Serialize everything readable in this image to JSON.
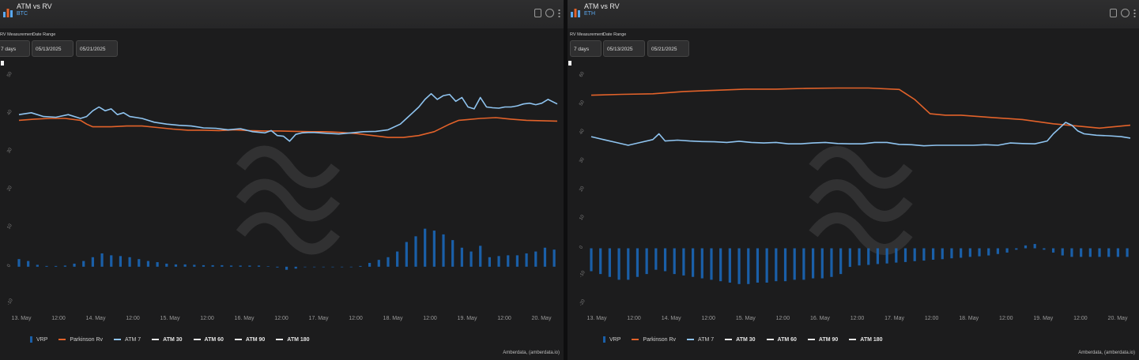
{
  "colors": {
    "vrp": "#1a5fa8",
    "parkinson": "#e2622a",
    "atm7": "#8fc4f0"
  },
  "left": {
    "title": "ATM vs RV",
    "subtitle": "BTC",
    "rv_label": "RV Measurement",
    "range_label": "Date Range",
    "rv_value": "7 days",
    "date_from": "05/13/2025",
    "date_to": "05/21/2025",
    "legend": [
      "VRP",
      "Parkinson Rv",
      "ATM 7",
      "ATM 30",
      "ATM 60",
      "ATM 90",
      "ATM 180"
    ],
    "credit": "Amberdata, (amberdata.io)"
  },
  "right": {
    "title": "ATM vs RV",
    "subtitle": "ETH",
    "rv_label": "RV Measurement",
    "range_label": "Date Range",
    "rv_value": "7 days",
    "date_from": "05/13/2025",
    "date_to": "05/21/2025",
    "legend": [
      "VRP",
      "Parkinson Rv",
      "ATM 7",
      "ATM 30",
      "ATM 60",
      "ATM 90",
      "ATM 180"
    ],
    "credit": "Amberdata, (amberdata.io)"
  },
  "chart_data": [
    {
      "type": "line",
      "x_ticks": [
        "13. May",
        "12:00",
        "14. May",
        "12:00",
        "15. May",
        "12:00",
        "16. May",
        "12:00",
        "17. May",
        "12:00",
        "18. May",
        "12:00",
        "19. May",
        "12:00",
        "20. May"
      ],
      "ylim": [
        -10,
        50
      ],
      "y_ticks": [
        -10,
        0,
        10,
        20,
        30,
        40,
        50
      ],
      "x_range": [
        0,
        175
      ],
      "series": [
        {
          "name": "Parkinson Rv",
          "kind": "line",
          "x": [
            0,
            5,
            10,
            15,
            20,
            22,
            24,
            30,
            35,
            40,
            45,
            50,
            55,
            60,
            65,
            70,
            75,
            80,
            85,
            90,
            95,
            100,
            105,
            110,
            115,
            120,
            125,
            130,
            135,
            140,
            143,
            146,
            150,
            155,
            160,
            165,
            170,
            175
          ],
          "values": [
            38.5,
            38.8,
            39,
            39,
            38.5,
            37.5,
            36.8,
            36.8,
            37,
            37,
            36.6,
            36.2,
            35.9,
            35.9,
            35.8,
            36,
            35.8,
            35.7,
            35.7,
            35.6,
            35.5,
            35.5,
            35.3,
            35,
            34.5,
            34,
            34,
            34.5,
            35.5,
            37.5,
            38.5,
            38.7,
            39,
            39.2,
            38.8,
            38.5,
            38.4,
            38.3
          ]
        },
        {
          "name": "ATM 7",
          "kind": "line",
          "x": [
            0,
            4,
            8,
            12,
            16,
            20,
            22,
            24,
            26,
            28,
            30,
            32,
            34,
            36,
            40,
            44,
            48,
            52,
            56,
            60,
            64,
            68,
            72,
            76,
            80,
            82,
            84,
            86,
            88,
            90,
            92,
            94,
            96,
            100,
            104,
            108,
            112,
            116,
            120,
            124,
            126,
            128,
            130,
            132,
            134,
            136,
            138,
            140,
            142,
            144,
            146,
            148,
            150,
            152,
            154,
            156,
            158,
            160,
            162,
            164,
            166,
            168,
            170,
            172,
            175
          ],
          "values": [
            40,
            40.5,
            39.5,
            39.3,
            40,
            39,
            39.5,
            41,
            42,
            41,
            41.5,
            40,
            40.5,
            39.5,
            39,
            38,
            37.5,
            37.2,
            37,
            36.5,
            36.4,
            36,
            36.3,
            35.5,
            35.2,
            35.8,
            34.5,
            34.3,
            33,
            34.8,
            35.2,
            35.3,
            35.3,
            35.1,
            34.9,
            35.2,
            35.5,
            35.6,
            36,
            37.5,
            39,
            40.5,
            42,
            44,
            45.5,
            44,
            45,
            45.3,
            43.5,
            44.5,
            42,
            41.5,
            44.5,
            42,
            41.8,
            41.7,
            42,
            42,
            42.3,
            42.8,
            43,
            42.6,
            43,
            44,
            42.8
          ]
        },
        {
          "name": "VRP",
          "kind": "bar",
          "x": [
            0,
            3,
            6,
            9,
            12,
            15,
            18,
            21,
            24,
            27,
            30,
            33,
            36,
            39,
            42,
            45,
            48,
            51,
            54,
            57,
            60,
            63,
            66,
            69,
            72,
            75,
            78,
            81,
            84,
            87,
            90,
            93,
            96,
            99,
            102,
            105,
            108,
            111,
            114,
            117,
            120,
            123,
            126,
            129,
            132,
            135,
            138,
            141,
            144,
            147,
            150,
            153,
            156,
            159,
            162,
            165,
            168,
            171,
            174
          ],
          "values": [
            2,
            1.5,
            0.5,
            0.2,
            0.2,
            0.3,
            0.8,
            1.5,
            2.5,
            3.5,
            3,
            2.8,
            2.5,
            2,
            1.5,
            1.2,
            0.8,
            0.6,
            0.6,
            0.5,
            0.4,
            0.4,
            0.4,
            0.3,
            0.3,
            0.3,
            0.3,
            0.1,
            -0.2,
            -0.8,
            -0.5,
            0,
            0,
            0,
            0,
            0,
            0,
            0.2,
            1,
            1.8,
            2.5,
            4,
            6.5,
            8,
            10,
            9.5,
            8.5,
            7,
            5,
            4,
            5.5,
            2.5,
            2.8,
            3,
            3,
            3.5,
            4,
            5,
            4.5
          ]
        }
      ]
    },
    {
      "type": "line",
      "x_ticks": [
        "13. May",
        "12:00",
        "14. May",
        "12:00",
        "15. May",
        "12:00",
        "16. May",
        "12:00",
        "17. May",
        "12:00",
        "18. May",
        "12:00",
        "19. May",
        "12:00",
        "20. May"
      ],
      "ylim": [
        -20,
        60
      ],
      "y_ticks": [
        -20,
        -10,
        0,
        10,
        20,
        30,
        40,
        50,
        60
      ],
      "x_range": [
        0,
        175
      ],
      "series": [
        {
          "name": "Parkinson Rv",
          "kind": "line",
          "x": [
            0,
            10,
            20,
            30,
            40,
            50,
            60,
            70,
            80,
            90,
            100,
            105,
            110,
            115,
            120,
            130,
            140,
            150,
            160,
            165,
            170,
            175
          ],
          "values": [
            53.5,
            53.8,
            54,
            54.8,
            55.2,
            55.6,
            55.6,
            55.9,
            56,
            56,
            55.5,
            52,
            47,
            46.5,
            46.5,
            45.7,
            45,
            43.5,
            42.5,
            42,
            42.5,
            43
          ]
        },
        {
          "name": "ATM 7",
          "kind": "line",
          "x": [
            0,
            4,
            8,
            12,
            16,
            20,
            22,
            24,
            28,
            32,
            36,
            40,
            44,
            48,
            52,
            56,
            60,
            64,
            68,
            72,
            76,
            80,
            84,
            88,
            92,
            96,
            100,
            104,
            108,
            112,
            116,
            120,
            124,
            128,
            132,
            136,
            140,
            144,
            148,
            150,
            152,
            154,
            156,
            158,
            160,
            164,
            168,
            172,
            175
          ],
          "values": [
            39,
            38,
            37,
            36,
            37,
            38,
            40,
            37.5,
            37.8,
            37.5,
            37.3,
            37.2,
            37,
            37.4,
            37,
            36.8,
            37,
            36.5,
            36.5,
            36.8,
            37,
            36.6,
            36.5,
            36.5,
            37,
            37,
            36.3,
            36.2,
            35.8,
            36,
            36,
            36,
            36,
            36.2,
            36,
            36.8,
            36.6,
            36.5,
            37.5,
            40,
            42,
            44,
            43,
            41,
            40,
            39.5,
            39.3,
            39,
            38.5
          ]
        },
        {
          "name": "VRP",
          "kind": "bar",
          "x": [
            0,
            3,
            6,
            9,
            12,
            15,
            18,
            21,
            24,
            27,
            30,
            33,
            36,
            39,
            42,
            45,
            48,
            51,
            54,
            57,
            60,
            63,
            66,
            69,
            72,
            75,
            78,
            81,
            84,
            87,
            90,
            93,
            96,
            99,
            102,
            105,
            108,
            111,
            114,
            117,
            120,
            123,
            126,
            129,
            132,
            135,
            138,
            141,
            144,
            147,
            150,
            153,
            156,
            159,
            162,
            165,
            168,
            171,
            174
          ],
          "values": [
            -8,
            -9,
            -10,
            -11,
            -11,
            -10,
            -9,
            -7.5,
            -8,
            -9,
            -9.5,
            -10,
            -10.5,
            -11,
            -11.5,
            -12,
            -12.5,
            -12.5,
            -12,
            -12,
            -11.5,
            -11.5,
            -11,
            -11,
            -10.5,
            -10.5,
            -10,
            -9,
            -6.5,
            -6,
            -5.8,
            -5.5,
            -5.3,
            -5,
            -4.8,
            -4.5,
            -4.3,
            -4,
            -3.8,
            -3.5,
            -3.3,
            -3,
            -2.8,
            -2.5,
            -2,
            -1.5,
            -0.5,
            1,
            1.5,
            -0.5,
            -1.5,
            -2.5,
            -3,
            -3,
            -3,
            -3,
            -3,
            -3,
            -3
          ]
        }
      ]
    }
  ]
}
